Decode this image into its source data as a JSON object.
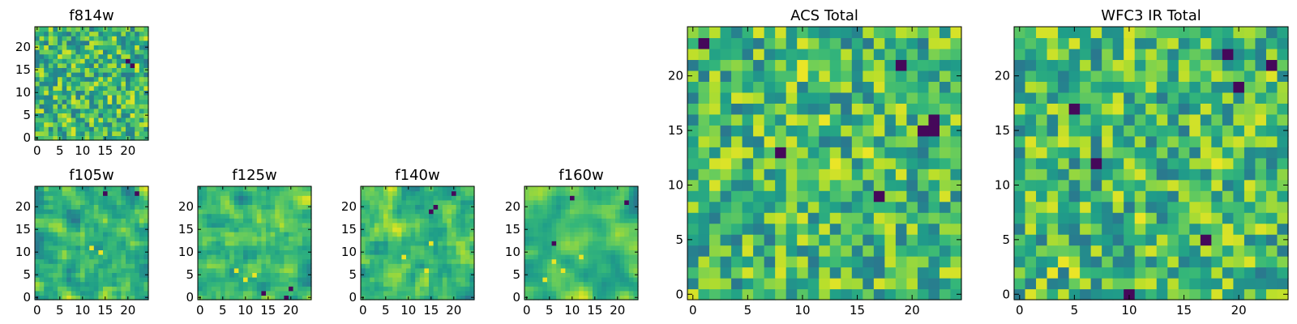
{
  "chart_data": [
    {
      "type": "heatmap",
      "title": "f814w",
      "grid_size": 25,
      "colormap": "viridis",
      "xticks": [
        0,
        5,
        10,
        15,
        20
      ],
      "yticks": [
        0,
        5,
        10,
        15,
        20
      ],
      "xlim": [
        -0.5,
        24.5
      ],
      "ylim": [
        -0.5,
        24.5
      ],
      "seed": 11,
      "smooth": 0,
      "hot_spots": [
        [
          22,
          16
        ],
        [
          16,
          9
        ]
      ],
      "cold_spots": [
        [
          20,
          17
        ],
        [
          21,
          16
        ]
      ]
    },
    {
      "type": "heatmap",
      "title": "f105w",
      "grid_size": 25,
      "colormap": "viridis",
      "xticks": [
        0,
        5,
        10,
        15,
        20
      ],
      "yticks": [
        0,
        5,
        10,
        15,
        20
      ],
      "xlim": [
        -0.5,
        24.5
      ],
      "ylim": [
        -0.5,
        24.5
      ],
      "seed": 23,
      "smooth": 1,
      "hot_spots": [
        [
          14,
          10
        ],
        [
          12,
          11
        ]
      ],
      "cold_spots": [
        [
          15,
          23
        ],
        [
          22,
          23
        ]
      ]
    },
    {
      "type": "heatmap",
      "title": "f125w",
      "grid_size": 25,
      "colormap": "viridis",
      "xticks": [
        0,
        5,
        10,
        15,
        20
      ],
      "yticks": [
        0,
        5,
        10,
        15,
        20
      ],
      "xlim": [
        -0.5,
        24.5
      ],
      "ylim": [
        -0.5,
        24.5
      ],
      "seed": 37,
      "smooth": 1,
      "hot_spots": [
        [
          10,
          4
        ],
        [
          12,
          5
        ],
        [
          8,
          6
        ]
      ],
      "cold_spots": [
        [
          20,
          2
        ],
        [
          19,
          0
        ],
        [
          14,
          1
        ]
      ]
    },
    {
      "type": "heatmap",
      "title": "f140w",
      "grid_size": 25,
      "colormap": "viridis",
      "xticks": [
        0,
        5,
        10,
        15,
        20
      ],
      "yticks": [
        0,
        5,
        10,
        15,
        20
      ],
      "xlim": [
        -0.5,
        24.5
      ],
      "ylim": [
        -0.5,
        24.5
      ],
      "seed": 41,
      "smooth": 1,
      "hot_spots": [
        [
          15,
          12
        ],
        [
          14,
          6
        ],
        [
          9,
          9
        ]
      ],
      "cold_spots": [
        [
          15,
          19
        ],
        [
          16,
          20
        ],
        [
          20,
          23
        ]
      ]
    },
    {
      "type": "heatmap",
      "title": "f160w",
      "grid_size": 25,
      "colormap": "viridis",
      "xticks": [
        0,
        5,
        10,
        15,
        20
      ],
      "yticks": [
        0,
        5,
        10,
        15,
        20
      ],
      "xlim": [
        -0.5,
        24.5
      ],
      "ylim": [
        -0.5,
        24.5
      ],
      "seed": 53,
      "smooth": 2,
      "hot_spots": [
        [
          4,
          4
        ],
        [
          8,
          6
        ],
        [
          12,
          9
        ],
        [
          6,
          8
        ]
      ],
      "cold_spots": [
        [
          6,
          12
        ],
        [
          10,
          22
        ],
        [
          22,
          21
        ]
      ]
    },
    {
      "type": "heatmap",
      "title": "ACS Total",
      "grid_size": 25,
      "colormap": "viridis",
      "xticks": [
        0,
        5,
        10,
        15,
        20
      ],
      "yticks": [
        0,
        5,
        10,
        15,
        20
      ],
      "xlim": [
        -0.5,
        24.5
      ],
      "ylim": [
        -0.5,
        24.5
      ],
      "seed": 67,
      "smooth": 0,
      "hot_spots": [
        [
          10,
          20
        ],
        [
          10,
          21
        ],
        [
          12,
          16
        ],
        [
          13,
          12
        ],
        [
          16,
          13
        ]
      ],
      "cold_spots": [
        [
          21,
          15
        ],
        [
          22,
          15
        ],
        [
          22,
          16
        ],
        [
          8,
          13
        ],
        [
          17,
          9
        ],
        [
          1,
          23
        ],
        [
          19,
          21
        ]
      ]
    },
    {
      "type": "heatmap",
      "title": "WFC3 IR Total",
      "grid_size": 25,
      "colormap": "viridis",
      "xticks": [
        0,
        5,
        10,
        15,
        20
      ],
      "yticks": [
        0,
        5,
        10,
        15,
        20
      ],
      "xlim": [
        -0.5,
        24.5
      ],
      "ylim": [
        -0.5,
        24.5
      ],
      "seed": 79,
      "smooth": 0,
      "hot_spots": [
        [
          4,
          3
        ],
        [
          5,
          2
        ],
        [
          3,
          2
        ],
        [
          18,
          12
        ],
        [
          11,
          7
        ]
      ],
      "cold_spots": [
        [
          10,
          0
        ],
        [
          17,
          5
        ],
        [
          7,
          12
        ],
        [
          5,
          17
        ],
        [
          20,
          19
        ],
        [
          19,
          22
        ],
        [
          23,
          21
        ]
      ]
    }
  ]
}
